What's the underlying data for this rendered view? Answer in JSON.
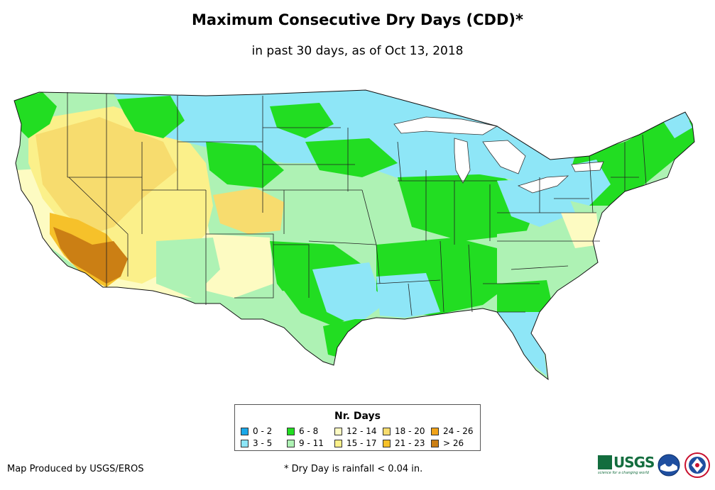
{
  "header": {
    "title": "Maximum Consecutive Dry Days (CDD)*",
    "subtitle": "in past 30 days, as of Oct 13, 2018"
  },
  "legend": {
    "title": "Nr. Days",
    "items": [
      {
        "label": "0 - 2",
        "color": "#1aa7e8"
      },
      {
        "label": "3 - 5",
        "color": "#8ee6f7"
      },
      {
        "label": "6 - 8",
        "color": "#22dd22"
      },
      {
        "label": "9 - 11",
        "color": "#aef2b4"
      },
      {
        "label": "12 - 14",
        "color": "#fdfbc2"
      },
      {
        "label": "15 - 17",
        "color": "#fbf08a"
      },
      {
        "label": "18 - 20",
        "color": "#f7dc6e"
      },
      {
        "label": "21 - 23",
        "color": "#f6c12a"
      },
      {
        "label": "24 - 26",
        "color": "#f0a31a"
      },
      {
        "label": "> 26",
        "color": "#cb7f14"
      }
    ]
  },
  "footer": {
    "credit": "Map Produced by USGS/EROS",
    "footnote": "* Dry Day is rainfall < 0.04 in.",
    "usgs_logo": "USGS",
    "usgs_tagline": "science for a changing world"
  },
  "icons": [
    "usgs-logo-icon",
    "noaa-logo-icon",
    "nws-logo-icon"
  ]
}
